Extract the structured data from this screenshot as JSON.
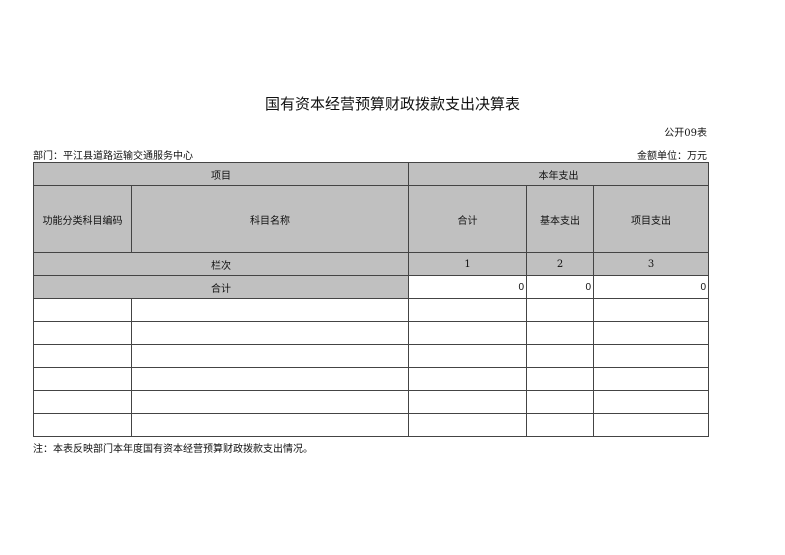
{
  "title": "国有资本经营预算财政拨款支出决算表",
  "sheet_no": "公开09表",
  "department": "部门：平江县道路运输交通服务中心",
  "unit": "金额单位：万元",
  "table": {
    "header_item": "项目",
    "header_expense": "本年支出",
    "col_code": "功能分类科目编码",
    "col_name": "科目名称",
    "col_total": "合计",
    "col_basic": "基本支出",
    "col_project": "项目支出",
    "row_index_label": "栏次",
    "idx1": "1",
    "idx2": "2",
    "idx3": "3",
    "total_label": "合计",
    "total_values": [
      "0",
      "0",
      "0"
    ],
    "rows": [
      [
        "",
        "",
        "",
        "",
        ""
      ],
      [
        "",
        "",
        "",
        "",
        ""
      ],
      [
        "",
        "",
        "",
        "",
        ""
      ],
      [
        "",
        "",
        "",
        "",
        ""
      ],
      [
        "",
        "",
        "",
        "",
        ""
      ],
      [
        "",
        "",
        "",
        "",
        ""
      ]
    ]
  },
  "note": "注：本表反映部门本年度国有资本经营预算财政拨款支出情况。"
}
